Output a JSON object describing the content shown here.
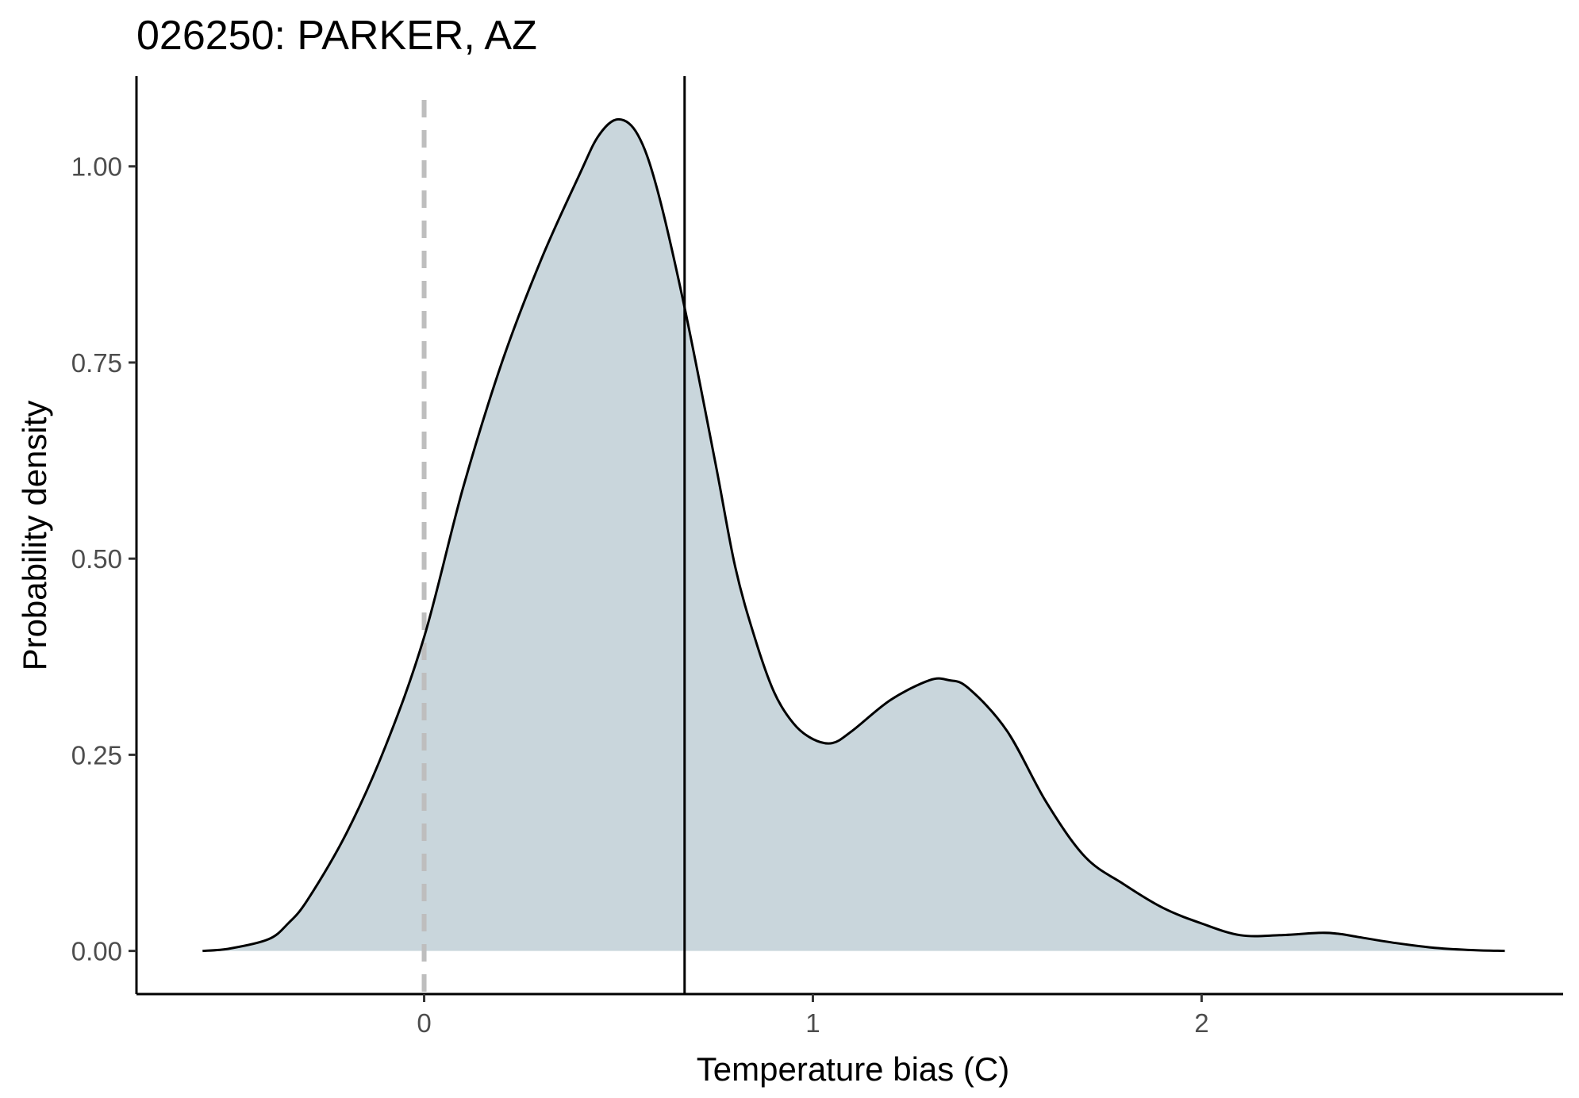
{
  "chart_data": {
    "type": "area",
    "title": "026250: PARKER, AZ",
    "xlabel": "Temperature bias (C)",
    "ylabel": "Probability density",
    "xlim": [
      -0.74,
      2.93
    ],
    "ylim": [
      -0.055,
      1.115
    ],
    "x_ticks": [
      0,
      1,
      2
    ],
    "x_tick_labels": [
      "0",
      "1",
      "2"
    ],
    "y_ticks": [
      0,
      0.25,
      0.5,
      0.75,
      1.0
    ],
    "y_tick_labels": [
      "0.00",
      "0.25",
      "0.50",
      "0.75",
      "1.00"
    ],
    "grid": false,
    "legend": "none",
    "fill_color": "#c9d6dc",
    "line_color": "#000000",
    "reference_dashed_line": {
      "x": 0,
      "color": "#bebebe"
    },
    "mean_line": {
      "x": 0.67,
      "color": "#000000"
    },
    "x": [
      -0.57,
      -0.5,
      -0.4,
      -0.35,
      -0.3,
      -0.2,
      -0.1,
      0.0,
      0.1,
      0.2,
      0.3,
      0.4,
      0.45,
      0.5,
      0.55,
      0.6,
      0.67,
      0.75,
      0.8,
      0.85,
      0.9,
      0.95,
      1.0,
      1.05,
      1.1,
      1.2,
      1.3,
      1.35,
      1.4,
      1.5,
      1.6,
      1.7,
      1.8,
      1.9,
      2.0,
      2.1,
      2.2,
      2.3,
      2.35,
      2.4,
      2.5,
      2.6,
      2.7,
      2.78
    ],
    "values": [
      0.0,
      0.003,
      0.015,
      0.035,
      0.065,
      0.15,
      0.26,
      0.4,
      0.59,
      0.75,
      0.88,
      0.99,
      1.04,
      1.06,
      1.04,
      0.97,
      0.82,
      0.62,
      0.49,
      0.4,
      0.33,
      0.29,
      0.27,
      0.265,
      0.28,
      0.32,
      0.345,
      0.345,
      0.335,
      0.28,
      0.19,
      0.12,
      0.085,
      0.055,
      0.035,
      0.02,
      0.02,
      0.023,
      0.022,
      0.018,
      0.01,
      0.004,
      0.001,
      0.0
    ]
  }
}
